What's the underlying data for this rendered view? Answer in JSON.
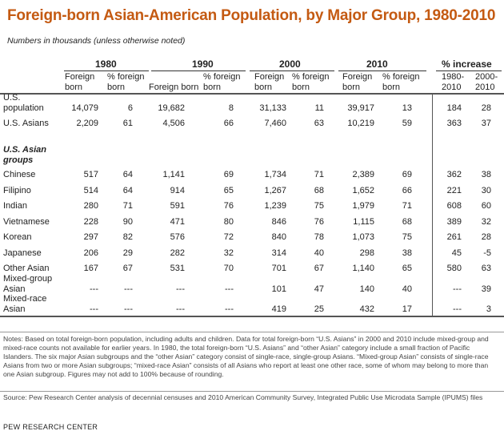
{
  "title": "Foreign-born Asian-American Population, by Major Group, 1980-2010",
  "subtitle": "Numbers in thousands (unless otherwise noted)",
  "groups": [
    "1980",
    "1990",
    "2000",
    "2010",
    "% increase"
  ],
  "subheaders": {
    "fb1980": [
      "Foreign",
      "born"
    ],
    "pct1980": [
      "% foreign",
      "born"
    ],
    "fb1990": "Foreign born",
    "pct1990": [
      "% foreign",
      "born"
    ],
    "fb2000": [
      "Foreign",
      "born"
    ],
    "pct2000": [
      "% foreign",
      "born"
    ],
    "fb2010": [
      "Foreign",
      "born"
    ],
    "pct2010": [
      "% foreign",
      "born"
    ],
    "inc1": [
      "1980-",
      "2010"
    ],
    "inc2": [
      "2000-",
      "2010"
    ]
  },
  "top_rows": [
    {
      "label": [
        "U.S.",
        "population"
      ],
      "values": [
        "14,079",
        "6",
        "19,682",
        "8",
        "31,133",
        "11",
        "39,917",
        "13",
        "184",
        "28"
      ]
    },
    {
      "label": [
        "U.S. Asians"
      ],
      "values": [
        "2,209",
        "61",
        "4,506",
        "66",
        "7,460",
        "63",
        "10,219",
        "59",
        "363",
        "37"
      ]
    }
  ],
  "section_label": [
    "U.S. Asian",
    "groups"
  ],
  "group_rows": [
    {
      "label": [
        "Chinese"
      ],
      "values": [
        "517",
        "64",
        "1,141",
        "69",
        "1,734",
        "71",
        "2,389",
        "69",
        "362",
        "38"
      ]
    },
    {
      "label": [
        "Filipino"
      ],
      "values": [
        "514",
        "64",
        "914",
        "65",
        "1,267",
        "68",
        "1,652",
        "66",
        "221",
        "30"
      ]
    },
    {
      "label": [
        "Indian"
      ],
      "values": [
        "280",
        "71",
        "591",
        "76",
        "1,239",
        "75",
        "1,979",
        "71",
        "608",
        "60"
      ]
    },
    {
      "label": [
        "Vietnamese"
      ],
      "values": [
        "228",
        "90",
        "471",
        "80",
        "846",
        "76",
        "1,115",
        "68",
        "389",
        "32"
      ]
    },
    {
      "label": [
        "Korean"
      ],
      "values": [
        "297",
        "82",
        "576",
        "72",
        "840",
        "78",
        "1,073",
        "75",
        "261",
        "28"
      ]
    },
    {
      "label": [
        "Japanese"
      ],
      "values": [
        "206",
        "29",
        "282",
        "32",
        "314",
        "40",
        "298",
        "38",
        "45",
        "-5"
      ]
    },
    {
      "label": [
        "Other Asian"
      ],
      "values": [
        "167",
        "67",
        "531",
        "70",
        "701",
        "67",
        "1,140",
        "65",
        "580",
        "63"
      ]
    },
    {
      "label": [
        "Mixed-group",
        "Asian"
      ],
      "values": [
        "---",
        "---",
        "---",
        "---",
        "101",
        "47",
        "140",
        "40",
        "---",
        "39"
      ]
    },
    {
      "label": [
        "Mixed-race",
        "Asian"
      ],
      "values": [
        "---",
        "---",
        "---",
        "---",
        "419",
        "25",
        "432",
        "17",
        "---",
        "3"
      ]
    }
  ],
  "notes": "Notes: Based on total foreign-born population, including adults and children. Data for total foreign-born “U.S. Asians” in 2000 and 2010 include mixed-group and mixed-race counts not available for earlier years. In  1980, the total foreign-born “U.S. Asians” and “other Asian” category include a small fraction of Pacific Islanders. The six major Asian subgroups and the “other Asian” category consist of single-race, single-group Asians. “Mixed-group Asian” consists of single-race Asians from two or more Asian subgroups; “mixed-race Asian” consists of all Asians who report at least one other race, some of whom  may belong to more than one Asian subgroup. Figures may not add to 100% because of rounding.",
  "source": "Source: Pew Research Center analysis of decennial censuses and 2010 American Community Survey, Integrated Public Use Microdata Sample (IPUMS) files",
  "org": "PEW RESEARCH CENTER",
  "colors": {
    "title": "#c45a12"
  }
}
